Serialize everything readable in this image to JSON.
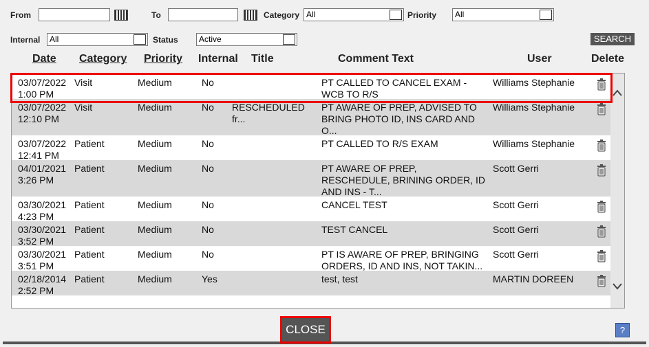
{
  "filters": {
    "from_label": "From",
    "to_label": "To",
    "category_label": "Category",
    "category_value": "All",
    "priority_label": "Priority",
    "priority_value": "All",
    "internal_label": "Internal",
    "internal_value": "All",
    "status_label": "Status",
    "status_value": "Active",
    "search": "SEARCH"
  },
  "table": {
    "headers": [
      "Date",
      "Category",
      "Priority",
      "Internal",
      "Title",
      "Comment Text",
      "User",
      "Delete"
    ],
    "rows": [
      {
        "date": "03/07/2022",
        "time": "1:00 PM",
        "category": "Visit",
        "priority": "Medium",
        "internal": "No",
        "comment": "PT CALLED TO CANCEL EXAM - WCB TO R/S",
        "user": "Williams Stephanie"
      },
      {
        "date": "03/07/2022",
        "time": "12:10 PM",
        "category": "Visit",
        "priority": "Medium",
        "internal": "No",
        "title": "RESCHEDULED fr...",
        "comment": "PT AWARE OF PREP, ADVISED TO BRING PHOTO ID, INS CARD AND O...",
        "user": "Williams Stephanie"
      },
      {
        "date": "03/07/2022",
        "time": "12:41 PM",
        "category": "Patient",
        "priority": "Medium",
        "internal": "No",
        "comment": "PT CALLED TO R/S EXAM",
        "user": "Williams Stephanie"
      },
      {
        "date": "04/01/2021",
        "time": "3:26 PM",
        "category": "Patient",
        "priority": "Medium",
        "internal": "No",
        "comment": "PT AWARE OF PREP, RESCHEDULE, BRINING ORDER, ID AND INS - T...",
        "user": "Scott Gerri"
      },
      {
        "date": "03/30/2021",
        "time": "4:23 PM",
        "category": "Patient",
        "priority": "Medium",
        "internal": "No",
        "comment": "CANCEL TEST",
        "user": "Scott Gerri"
      },
      {
        "date": "03/30/2021",
        "time": "3:52 PM",
        "category": "Patient",
        "priority": "Medium",
        "internal": "No",
        "comment": "TEST CANCEL",
        "user": "Scott Gerri"
      },
      {
        "date": "03/30/2021",
        "time": "3:51 PM",
        "category": "Patient",
        "priority": "Medium",
        "internal": "No",
        "comment": "PT IS AWARE OF PREP, BRINGING ORDERS, ID AND INS, NOT TAKIN...",
        "user": "Scott Gerri"
      },
      {
        "date": "02/18/2014",
        "time": "2:52 PM",
        "category": "Patient",
        "priority": "Medium",
        "internal": "Yes",
        "comment": "test, test",
        "user": "MARTIN DOREEN"
      }
    ]
  },
  "footer": {
    "close": "CLOSE",
    "help": "?"
  }
}
